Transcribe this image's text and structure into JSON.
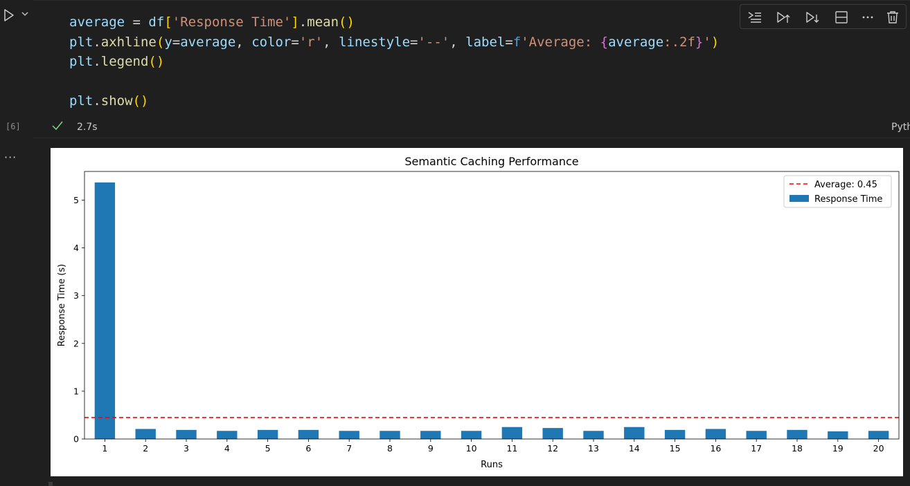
{
  "cell": {
    "code_lines": [
      [
        [
          "v",
          "average"
        ],
        [
          "",
          "&#32;= "
        ],
        [
          "v",
          "df"
        ],
        [
          "b1",
          "["
        ],
        [
          "s",
          "'Response Time'"
        ],
        [
          "b1",
          "]"
        ],
        [
          "",
          "."
        ],
        [
          "f",
          "mean"
        ],
        [
          "b1",
          "()"
        ]
      ],
      [
        [
          "v",
          "plt"
        ],
        [
          "",
          "."
        ],
        [
          "f",
          "axhline"
        ],
        [
          "b1",
          "("
        ],
        [
          "v",
          "y"
        ],
        [
          "",
          "="
        ],
        [
          "v",
          "average"
        ],
        [
          "",
          ", "
        ],
        [
          "v",
          "color"
        ],
        [
          "",
          "="
        ],
        [
          "s",
          "'r'"
        ],
        [
          "",
          ", "
        ],
        [
          "v",
          "linestyle"
        ],
        [
          "",
          "="
        ],
        [
          "s",
          "'--'"
        ],
        [
          "",
          ", "
        ],
        [
          "v",
          "label"
        ],
        [
          "",
          "="
        ],
        [
          "kw",
          "f"
        ],
        [
          "s",
          "'Average: "
        ],
        [
          "b2",
          "{"
        ],
        [
          "v",
          "average"
        ],
        [
          "s",
          ":.2f"
        ],
        [
          "b2",
          "}"
        ],
        [
          "s",
          "'"
        ],
        [
          "b1",
          ")"
        ]
      ],
      [
        [
          "v",
          "plt"
        ],
        [
          "",
          "."
        ],
        [
          "f",
          "legend"
        ],
        [
          "b1",
          "()"
        ]
      ],
      [],
      [
        [
          "v",
          "plt"
        ],
        [
          "",
          "."
        ],
        [
          "f",
          "show"
        ],
        [
          "b1",
          "()"
        ]
      ]
    ],
    "execution_count": "[6]",
    "duration": "2.7s",
    "kernel_label": "Pyth",
    "output_menu": "···"
  },
  "toolbar": {
    "icons": [
      "run-by-line-icon",
      "execute-above-icon",
      "execute-below-icon",
      "split-cell-icon",
      "more-actions-icon",
      "delete-cell-icon"
    ]
  },
  "colors": {
    "bar": "#1f77b4",
    "average_line": "#ff0000"
  },
  "chart_data": {
    "type": "bar",
    "title": "Semantic Caching Performance",
    "xlabel": "Runs",
    "ylabel": "Response Time (s)",
    "categories": [
      "1",
      "2",
      "3",
      "4",
      "5",
      "6",
      "7",
      "8",
      "9",
      "10",
      "11",
      "12",
      "13",
      "14",
      "15",
      "16",
      "17",
      "18",
      "19",
      "20"
    ],
    "series": [
      {
        "name": "Response Time",
        "values": [
          5.37,
          0.21,
          0.19,
          0.17,
          0.19,
          0.19,
          0.17,
          0.17,
          0.17,
          0.17,
          0.25,
          0.23,
          0.17,
          0.25,
          0.19,
          0.21,
          0.17,
          0.19,
          0.16,
          0.17
        ]
      }
    ],
    "hlines": [
      {
        "name": "Average: 0.45",
        "y": 0.45,
        "style": "dashed",
        "color": "#ff0000"
      }
    ],
    "yticks": [
      0,
      1,
      2,
      3,
      4,
      5
    ],
    "ylim": [
      0,
      5.6
    ],
    "legend": "top-right",
    "grid": false
  }
}
